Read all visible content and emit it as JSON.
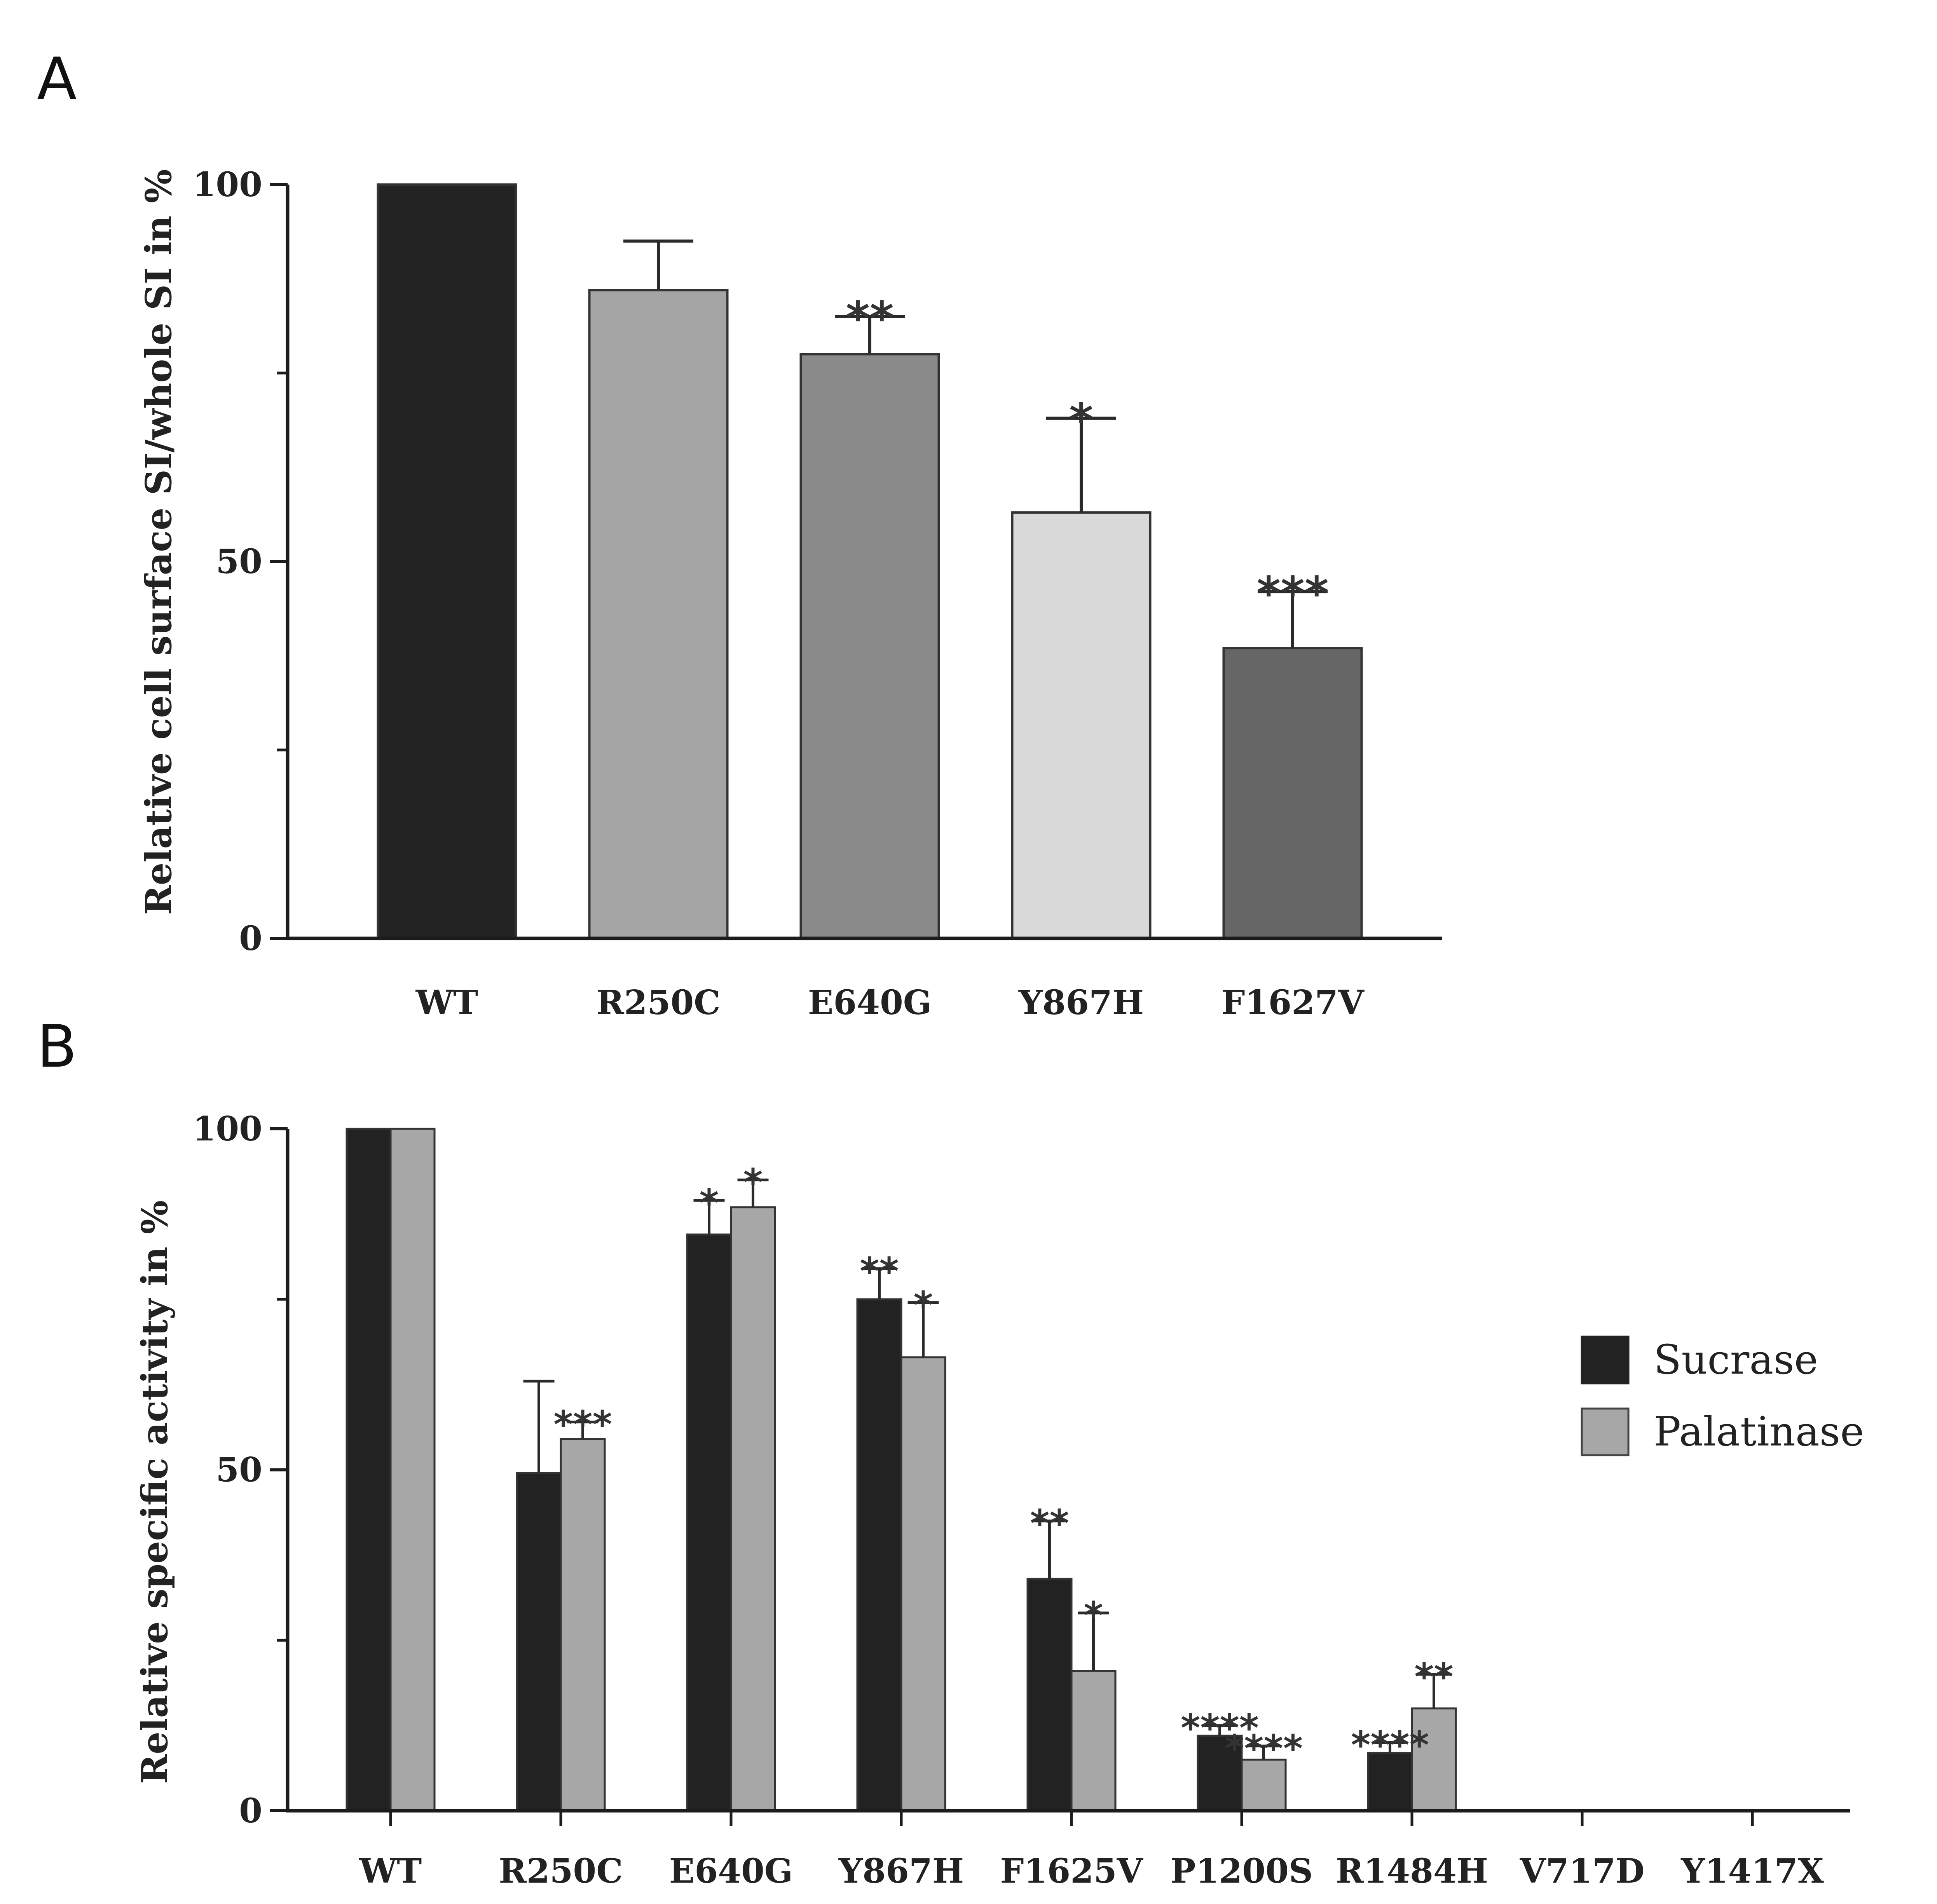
{
  "panels": {
    "a": {
      "label": "A"
    },
    "b": {
      "label": "B"
    }
  },
  "colors": {
    "axis": "#1c1c1c",
    "error_bar": "#2a2a2a",
    "bar_outline": "#333333",
    "sucrase": "#222222",
    "palatinase": "#a7a7a7"
  },
  "chart_data": [
    {
      "id": "panel-a",
      "type": "bar",
      "title": "",
      "xlabel": "",
      "ylabel": "Relative cell surface SI/whole SI in %",
      "ylim": [
        0,
        100
      ],
      "yticks": [
        0,
        50,
        100
      ],
      "categories": [
        "WT",
        "R250C",
        "E640G",
        "Y867H",
        "F1627V"
      ],
      "values": [
        100,
        86,
        77.5,
        56.5,
        38.5
      ],
      "errors": [
        0,
        6.5,
        5,
        12.5,
        7.5
      ],
      "significance": [
        "",
        "",
        "**",
        "*",
        "***"
      ],
      "bar_colors": [
        "#232323",
        "#a5a5a5",
        "#8a8a8a",
        "#d9d9d9",
        "#666666"
      ]
    },
    {
      "id": "panel-b",
      "type": "bar",
      "title": "",
      "xlabel": "",
      "ylabel": "Relative specific activity in %",
      "ylim": [
        0,
        100
      ],
      "yticks": [
        0,
        50,
        100
      ],
      "categories": [
        "WT",
        "R250C",
        "E640G",
        "Y867H",
        "F1625V",
        "P1200S",
        "R1484H",
        "V717D",
        "Y1417X"
      ],
      "legend_position": "right",
      "series": [
        {
          "name": "Sucrase",
          "values": [
            100,
            49.5,
            84.5,
            75,
            34,
            11,
            8.5,
            0,
            0
          ],
          "errors": [
            0,
            13.5,
            5,
            4.5,
            8.5,
            1.5,
            1.5,
            0,
            0
          ],
          "significance": [
            "",
            "",
            "*",
            "**",
            "**",
            "****",
            "****",
            "",
            ""
          ]
        },
        {
          "name": "Palatinase",
          "values": [
            100,
            54.5,
            88.5,
            66.5,
            20.5,
            7.5,
            15,
            0,
            0
          ],
          "errors": [
            0,
            2.5,
            4,
            8,
            8.5,
            2,
            5,
            0,
            0
          ],
          "significance": [
            "",
            "***",
            "*",
            "*",
            "*",
            "****",
            "**",
            "",
            ""
          ]
        }
      ]
    }
  ]
}
